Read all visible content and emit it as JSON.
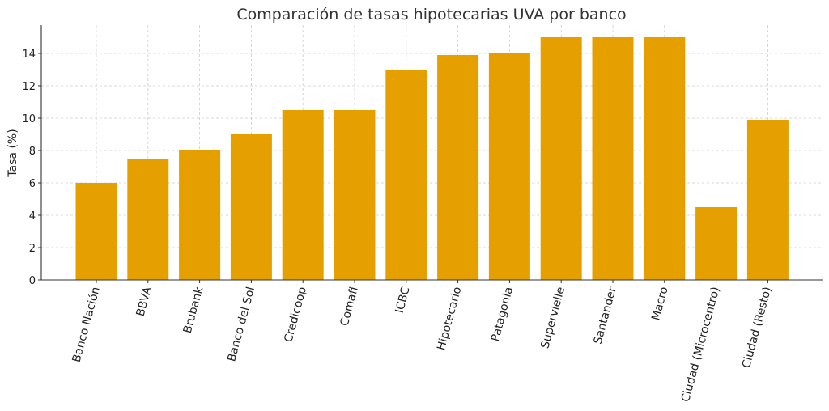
{
  "chart_data": {
    "type": "bar",
    "title": "Comparación de tasas hipotecarias UVA por banco",
    "xlabel": "",
    "ylabel": "Tasa (%)",
    "categories": [
      "Banco Nación",
      "BBVA",
      "Brubank",
      "Banco del Sol",
      "Credicoop",
      "Comafi",
      "ICBC",
      "Hipotecario",
      "Patagonia",
      "Supervielle",
      "Santander",
      "Macro",
      "Ciudad (Microcentro)",
      "Ciudad (Resto)"
    ],
    "values": [
      6,
      7.5,
      8,
      9,
      10.5,
      10.5,
      13,
      13.9,
      14,
      15,
      15,
      15,
      4.5,
      9.9
    ],
    "ylim": [
      0,
      15.75
    ],
    "yticks": [
      0,
      2,
      4,
      6,
      8,
      10,
      12,
      14
    ],
    "grid": true,
    "bar_color": "#E5A000"
  }
}
